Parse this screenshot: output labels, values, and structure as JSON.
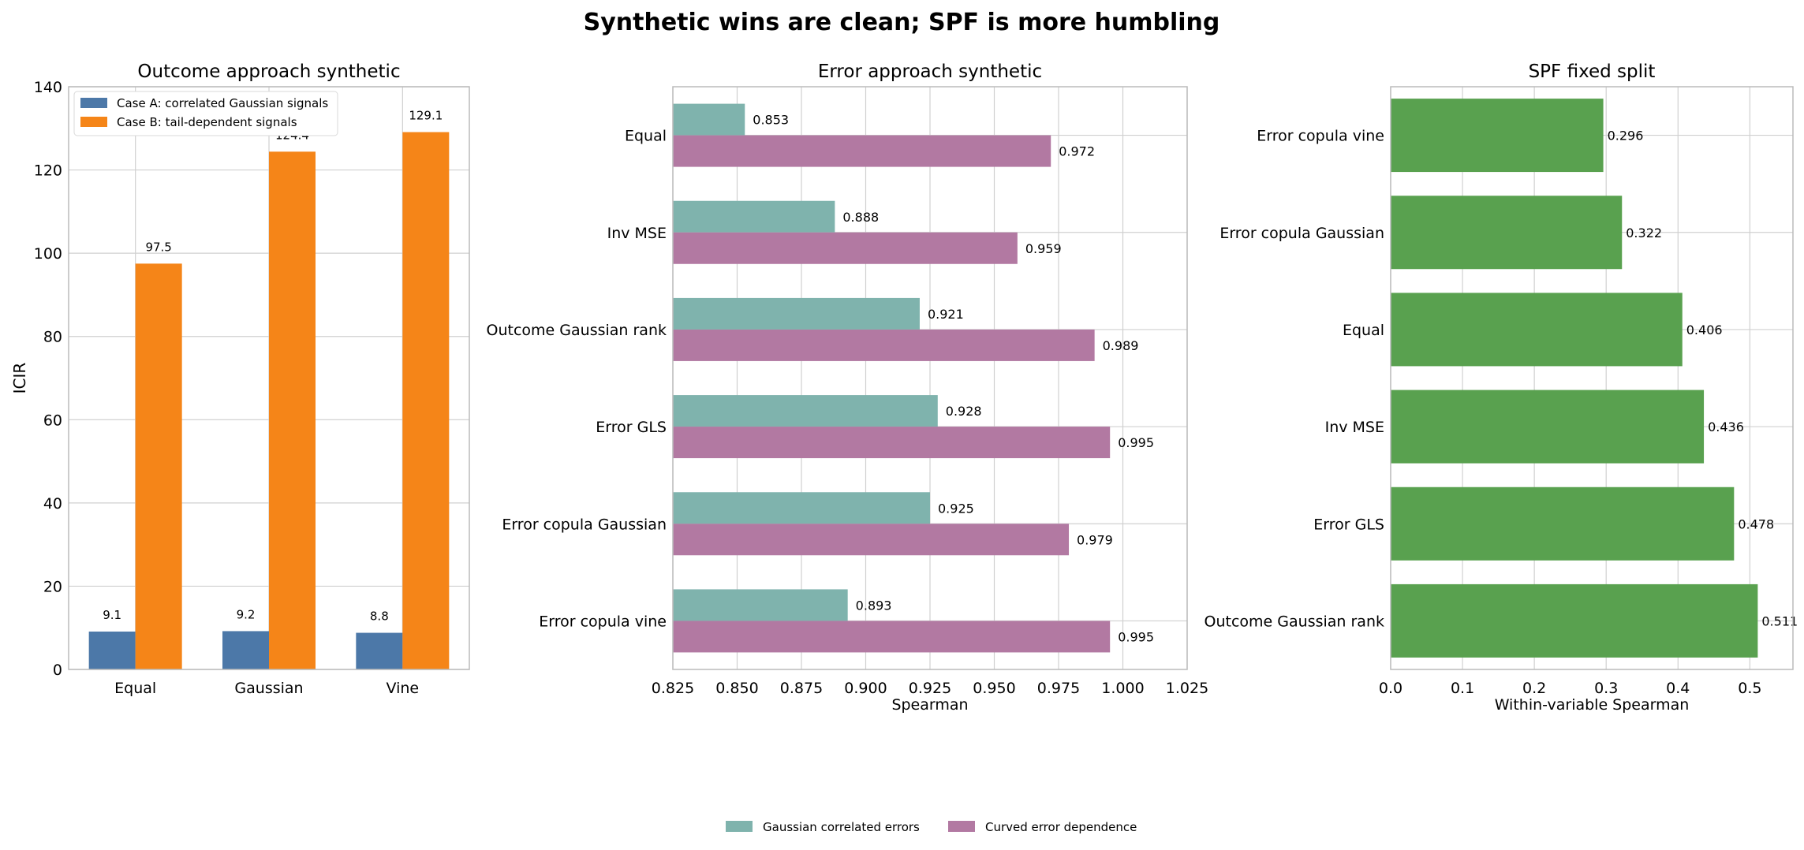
{
  "figure": {
    "title": "Synthetic wins are clean; SPF is more humbling"
  },
  "colors": {
    "caseA": "#4c78a8",
    "caseB": "#f58518",
    "gaussian_err": "#7fb3ad",
    "curved_err": "#b279a2",
    "spf": "#59a14f",
    "grid": "#d0d0d0",
    "axis": "#bbbbbb",
    "text": "#222222"
  },
  "chart_data": [
    {
      "type": "bar",
      "title": "Outcome approach synthetic",
      "xlabel": "",
      "ylabel": "ICIR",
      "categories": [
        "Equal",
        "Gaussian",
        "Vine"
      ],
      "ylim": [
        0,
        140
      ],
      "yticks": [
        0,
        20,
        40,
        60,
        80,
        100,
        120,
        140
      ],
      "grid": true,
      "legend_position": "top-left",
      "series": [
        {
          "name": "Case A: correlated Gaussian signals",
          "values": [
            9.1,
            9.2,
            8.8
          ],
          "labels": [
            "9.1",
            "9.2",
            "8.8"
          ]
        },
        {
          "name": "Case B: tail-dependent signals",
          "values": [
            97.5,
            124.4,
            129.1
          ],
          "labels": [
            "97.5",
            "124.4",
            "129.1"
          ]
        }
      ]
    },
    {
      "type": "bar",
      "orientation": "horizontal",
      "title": "Error approach synthetic",
      "xlabel": "Spearman",
      "ylabel": "",
      "categories": [
        "Equal",
        "Inv MSE",
        "Outcome Gaussian rank",
        "Error GLS",
        "Error copula Gaussian",
        "Error copula vine"
      ],
      "xlim": [
        0.825,
        1.025
      ],
      "xticks": [
        "0.825",
        "0.850",
        "0.875",
        "0.900",
        "0.925",
        "0.950",
        "0.975",
        "1.000",
        "1.025"
      ],
      "grid": true,
      "legend_position": "bottom-center",
      "series": [
        {
          "name": "Gaussian correlated errors",
          "values": [
            0.853,
            0.888,
            0.921,
            0.928,
            0.925,
            0.893
          ],
          "labels": [
            "0.853",
            "0.888",
            "0.921",
            "0.928",
            "0.925",
            "0.893"
          ]
        },
        {
          "name": "Curved error dependence",
          "values": [
            0.972,
            0.959,
            0.989,
            0.995,
            0.979,
            0.995
          ],
          "labels": [
            "0.972",
            "0.959",
            "0.989",
            "0.995",
            "0.979",
            "0.995"
          ]
        }
      ]
    },
    {
      "type": "bar",
      "orientation": "horizontal",
      "title": "SPF fixed split",
      "xlabel": "Within-variable Spearman",
      "ylabel": "",
      "categories": [
        "Error copula vine",
        "Error copula Gaussian",
        "Equal",
        "Inv MSE",
        "Error GLS",
        "Outcome Gaussian rank"
      ],
      "xlim": [
        0,
        0.56
      ],
      "xticks": [
        "0.0",
        "0.1",
        "0.2",
        "0.3",
        "0.4",
        "0.5"
      ],
      "grid": true,
      "series": [
        {
          "values": [
            0.296,
            0.322,
            0.406,
            0.436,
            0.478,
            0.511
          ],
          "labels": [
            "0.296",
            "0.322",
            "0.406",
            "0.436",
            "0.478",
            "0.511"
          ]
        }
      ]
    }
  ]
}
